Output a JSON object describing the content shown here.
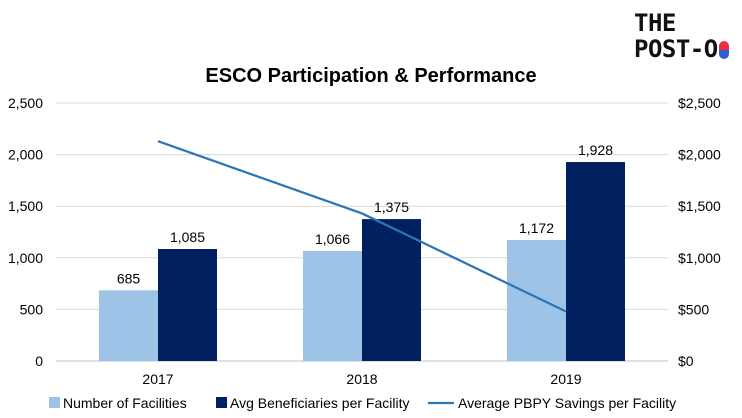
{
  "logo": {
    "line1": "THE",
    "line2": "POST-O",
    "pill_colors": [
      "#e8303f",
      "#2f5fd0"
    ]
  },
  "chart_data": {
    "type": "bar+line",
    "title": "ESCO Participation & Performance",
    "categories": [
      "2017",
      "2018",
      "2019"
    ],
    "series": [
      {
        "name": "Number of Facilities",
        "kind": "bar",
        "axis": "left",
        "color": "#9dc3e6",
        "values": [
          685,
          1066,
          1172
        ],
        "labels": [
          "685",
          "1,066",
          "1,172"
        ]
      },
      {
        "name": "Avg Beneficiaries per Facility",
        "kind": "bar",
        "axis": "left",
        "color": "#002060",
        "values": [
          1085,
          1375,
          1928
        ],
        "labels": [
          "1,085",
          "1,375",
          "1,928"
        ]
      },
      {
        "name": "Average PBPY Savings per Facility",
        "kind": "line",
        "axis": "right",
        "color": "#2e75b6",
        "values": [
          2130,
          1430,
          480
        ]
      }
    ],
    "left_axis": {
      "min": 0,
      "max": 2500,
      "step": 500,
      "tick_labels": [
        "0",
        "500",
        "1,000",
        "1,500",
        "2,000",
        "2,500"
      ]
    },
    "right_axis": {
      "min": 0,
      "max": 2500,
      "step": 500,
      "tick_labels": [
        "$0",
        "$500",
        "$1,000",
        "$1,500",
        "$2,000",
        "$2,500"
      ]
    },
    "grid": true,
    "legend_position": "bottom"
  }
}
